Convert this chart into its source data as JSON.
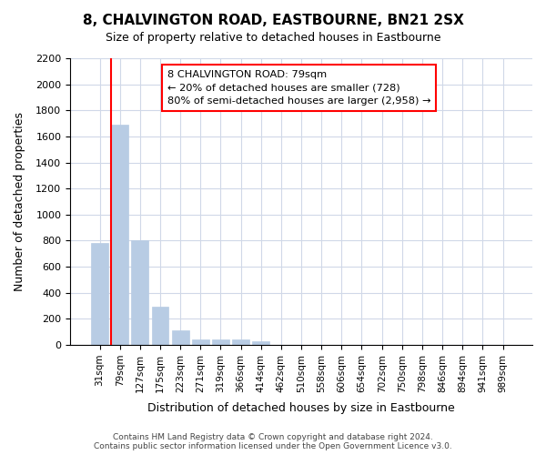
{
  "title": "8, CHALVINGTON ROAD, EASTBOURNE, BN21 2SX",
  "subtitle": "Size of property relative to detached houses in Eastbourne",
  "xlabel": "Distribution of detached houses by size in Eastbourne",
  "ylabel": "Number of detached properties",
  "bar_labels": [
    "31sqm",
    "79sqm",
    "127sqm",
    "175sqm",
    "223sqm",
    "271sqm",
    "319sqm",
    "366sqm",
    "414sqm",
    "462sqm",
    "510sqm",
    "558sqm",
    "606sqm",
    "654sqm",
    "702sqm",
    "750sqm",
    "798sqm",
    "846sqm",
    "894sqm",
    "941sqm",
    "989sqm"
  ],
  "bar_values": [
    780,
    1690,
    800,
    295,
    115,
    40,
    40,
    40,
    30,
    0,
    0,
    0,
    0,
    0,
    0,
    0,
    0,
    0,
    0,
    0,
    0
  ],
  "bar_color": "#b8cce4",
  "vline_color": "#ff0000",
  "ylim": [
    0,
    2200
  ],
  "yticks": [
    0,
    200,
    400,
    600,
    800,
    1000,
    1200,
    1400,
    1600,
    1800,
    2000,
    2200
  ],
  "annotation_title": "8 CHALVINGTON ROAD: 79sqm",
  "annotation_line1": "← 20% of detached houses are smaller (728)",
  "annotation_line2": "80% of semi-detached houses are larger (2,958) →",
  "footer_line1": "Contains HM Land Registry data © Crown copyright and database right 2024.",
  "footer_line2": "Contains public sector information licensed under the Open Government Licence v3.0.",
  "background_color": "#ffffff",
  "grid_color": "#d0d8e8"
}
